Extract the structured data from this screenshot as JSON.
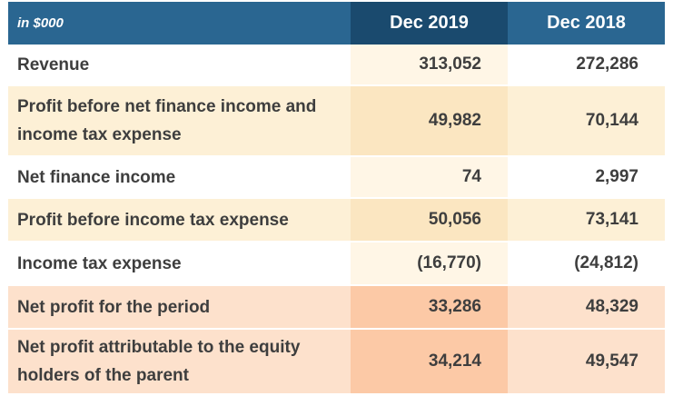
{
  "header": {
    "label": "in $000",
    "col1": "Dec 2019",
    "col2": "Dec 2018"
  },
  "rows": [
    {
      "label": "Revenue",
      "dec2019": "313,052",
      "dec2018": "272,286"
    },
    {
      "label": "Profit before net finance income and income tax expense",
      "dec2019": "49,982",
      "dec2018": "70,144"
    },
    {
      "label": "Net finance income",
      "dec2019": "74",
      "dec2018": "2,997"
    },
    {
      "label": "Profit before income tax expense",
      "dec2019": "50,056",
      "dec2018": "73,141"
    },
    {
      "label": "Income tax expense",
      "dec2019": "(16,770)",
      "dec2018": "(24,812)"
    },
    {
      "label": "Net profit for the period",
      "dec2019": "33,286",
      "dec2018": "48,329"
    },
    {
      "label": "Net profit attributable to the equity holders of the parent",
      "dec2019": "34,214",
      "dec2018": "49,547"
    }
  ],
  "colors": {
    "header_blue": "#2a6691",
    "header_dark_blue": "#1a4a6e",
    "row_tan": "#fdf0d6",
    "row_peach": "#fde1cc"
  }
}
